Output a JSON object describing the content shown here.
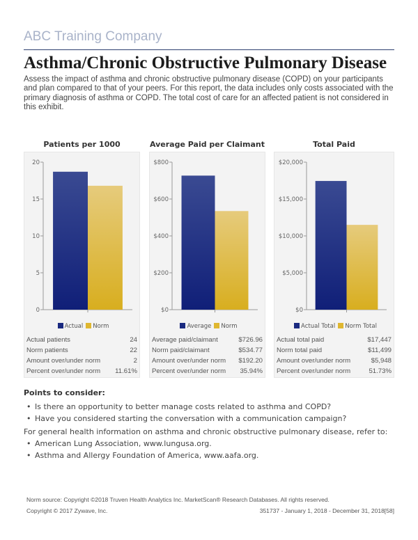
{
  "header": {
    "company": "ABC Training Company",
    "title": "Asthma/Chronic Obstructive Pulmonary Disease",
    "intro": "Assess the impact of asthma and chronic obstructive pulmonary disease (COPD) on your participants and plan compared to that of your peers. For this report, the data includes only costs associated with the primary diagnosis of asthma or COPD. The total cost of care for an affected patient is not considered in this exhibit."
  },
  "colors": {
    "actual": "#1a2a80",
    "norm": "#dfb730"
  },
  "chart_data": [
    {
      "type": "bar",
      "title": "Patients per 1000",
      "categories": [
        ""
      ],
      "series": [
        {
          "name": "Actual",
          "values": [
            18.7
          ]
        },
        {
          "name": "Norm",
          "values": [
            16.8
          ]
        }
      ],
      "ylim": [
        0,
        20
      ],
      "yticks": [
        0,
        5,
        10,
        15,
        20
      ],
      "ytick_labels": [
        "0",
        "5",
        "10",
        "15",
        "20"
      ],
      "legend": "bottom",
      "table": [
        [
          "Actual patients",
          "24"
        ],
        [
          "Norm patients",
          "22"
        ],
        [
          "Amount over/under norm",
          "2"
        ],
        [
          "Percent over/under norm",
          "11.61%"
        ]
      ]
    },
    {
      "type": "bar",
      "title": "Average Paid per Claimant",
      "categories": [
        ""
      ],
      "series": [
        {
          "name": "Average",
          "values": [
            726.96
          ]
        },
        {
          "name": "Norm",
          "values": [
            534.77
          ]
        }
      ],
      "ylim": [
        0,
        800
      ],
      "yticks": [
        0,
        200,
        400,
        600,
        800
      ],
      "ytick_labels": [
        "$0",
        "$200",
        "$400",
        "$600",
        "$800"
      ],
      "legend": "bottom",
      "table": [
        [
          "Average paid/claimant",
          "$726.96"
        ],
        [
          "Norm paid/claimant",
          "$534.77"
        ],
        [
          "Amount over/under norm",
          "$192.20"
        ],
        [
          "Percent over/under norm",
          "35.94%"
        ]
      ]
    },
    {
      "type": "bar",
      "title": "Total Paid",
      "categories": [
        ""
      ],
      "series": [
        {
          "name": "Actual Total",
          "values": [
            17447
          ]
        },
        {
          "name": "Norm Total",
          "values": [
            11499
          ]
        }
      ],
      "ylim": [
        0,
        20000
      ],
      "yticks": [
        0,
        5000,
        10000,
        15000,
        20000
      ],
      "ytick_labels": [
        "$0",
        "$5,000",
        "$10,000",
        "$15,000",
        "$20,000"
      ],
      "legend": "bottom",
      "table": [
        [
          "Actual total paid",
          "$17,447"
        ],
        [
          "Norm total paid",
          "$11,499"
        ],
        [
          "Amount over/under norm",
          "$5,948"
        ],
        [
          "Percent over/under norm",
          "51.73%"
        ]
      ]
    }
  ],
  "points": {
    "heading": "Points to consider:",
    "items": [
      "Is there an opportunity to better manage costs related to asthma and COPD?",
      "Have you considered starting the conversation with a communication campaign?"
    ],
    "general": "For general health information on asthma and chronic obstructive pulmonary disease, refer to:",
    "refs": [
      "American Lung Association, www.lungusa.org.",
      "Asthma and Allergy Foundation of America, www.aafa.org."
    ]
  },
  "footer": {
    "norm_source": "Norm source: Copyright ©2018 Truven Health Analytics Inc. MarketScan® Research Databases. All rights reserved.",
    "copyright": "Copyright © 2017 Zywave, Inc.",
    "report_id": "351737 - January 1, 2018 - December 31, 2018[58]"
  }
}
